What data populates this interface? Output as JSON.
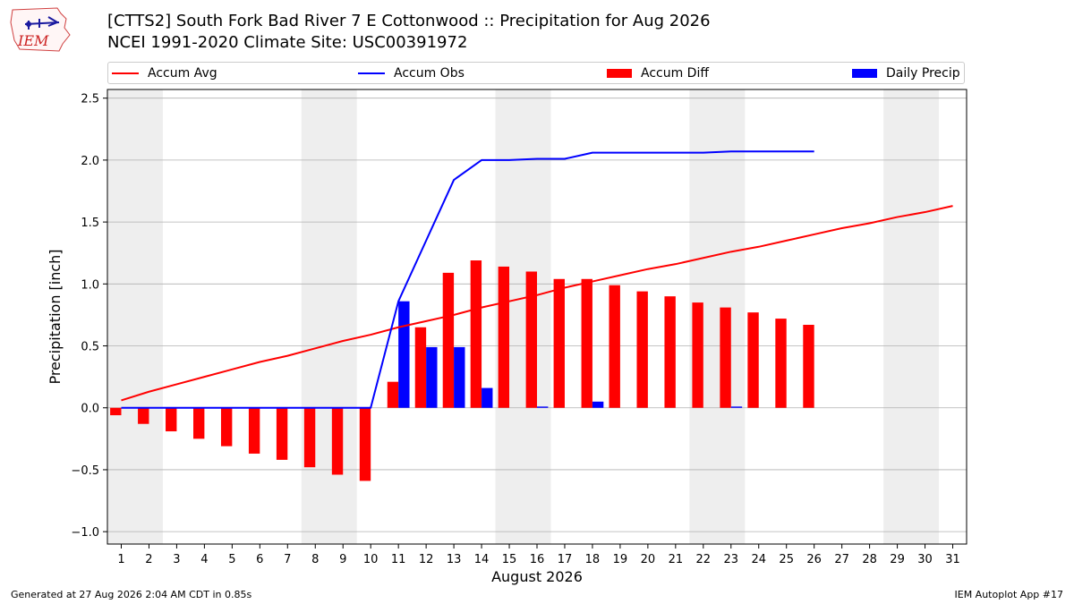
{
  "header": {
    "logo_text": "IEM",
    "title_line1": "[CTTS2] South Fork Bad River 7 E Cottonwood :: Precipitation for Aug 2026",
    "title_line2": "NCEI 1991-2020 Climate Site: USC00391972"
  },
  "footer": {
    "generated": "Generated at 27 Aug 2026 2:04 AM CDT in 0.85s",
    "app": "IEM Autoplot App #17"
  },
  "colors": {
    "accum_avg": "#ff0000",
    "accum_obs": "#0000ff",
    "accum_diff": "#ff0000",
    "daily_precip": "#0000ff",
    "weekend_shade": "#eeeeee",
    "grid": "#b0b0b0"
  },
  "chart_data": {
    "type": "bar",
    "xlabel": "August 2026",
    "ylabel": "Precipitation [inch]",
    "x_ticks": [
      "1",
      "2",
      "3",
      "4",
      "5",
      "6",
      "7",
      "8",
      "9",
      "10",
      "11",
      "12",
      "13",
      "14",
      "15",
      "16",
      "17",
      "18",
      "19",
      "20",
      "21",
      "22",
      "23",
      "24",
      "25",
      "26",
      "27",
      "28",
      "29",
      "30",
      "31"
    ],
    "ylim": [
      -1.1,
      2.57
    ],
    "y_ticks": [
      -1.0,
      -0.5,
      0.0,
      0.5,
      1.0,
      1.5,
      2.0,
      2.5
    ],
    "y_tick_labels": [
      "−1.0",
      "−0.5",
      "0.0",
      "0.5",
      "1.0",
      "1.5",
      "2.0",
      "2.5"
    ],
    "grid": "horizontal",
    "legend_position": "top",
    "shaded_days": [
      [
        1,
        2
      ],
      [
        8,
        9
      ],
      [
        15,
        16
      ],
      [
        22,
        23
      ],
      [
        29,
        30
      ]
    ],
    "series": [
      {
        "name": "Accum Avg",
        "kind": "line",
        "x": [
          1,
          2,
          3,
          4,
          5,
          6,
          7,
          8,
          9,
          10,
          11,
          12,
          13,
          14,
          15,
          16,
          17,
          18,
          19,
          20,
          21,
          22,
          23,
          24,
          25,
          26,
          27,
          28,
          29,
          30,
          31
        ],
        "values": [
          0.06,
          0.13,
          0.19,
          0.25,
          0.31,
          0.37,
          0.42,
          0.48,
          0.54,
          0.59,
          0.65,
          0.7,
          0.75,
          0.81,
          0.86,
          0.91,
          0.97,
          1.02,
          1.07,
          1.12,
          1.16,
          1.21,
          1.26,
          1.3,
          1.35,
          1.4,
          1.45,
          1.49,
          1.54,
          1.58,
          1.63
        ]
      },
      {
        "name": "Accum Obs",
        "kind": "line",
        "x": [
          1,
          2,
          3,
          4,
          5,
          6,
          7,
          8,
          9,
          10,
          11,
          12,
          13,
          14,
          15,
          16,
          17,
          18,
          19,
          20,
          21,
          22,
          23,
          24,
          25,
          26
        ],
        "values": [
          0.0,
          0.0,
          0.0,
          0.0,
          0.0,
          0.0,
          0.0,
          0.0,
          0.0,
          0.0,
          0.86,
          1.35,
          1.84,
          2.0,
          2.0,
          2.01,
          2.01,
          2.06,
          2.06,
          2.06,
          2.06,
          2.06,
          2.07,
          2.07,
          2.07,
          2.07
        ]
      },
      {
        "name": "Accum Diff",
        "kind": "bar",
        "x": [
          1,
          2,
          3,
          4,
          5,
          6,
          7,
          8,
          9,
          10,
          11,
          12,
          13,
          14,
          15,
          16,
          17,
          18,
          19,
          20,
          21,
          22,
          23,
          24,
          25,
          26
        ],
        "values": [
          -0.06,
          -0.13,
          -0.19,
          -0.25,
          -0.31,
          -0.37,
          -0.42,
          -0.48,
          -0.54,
          -0.59,
          0.21,
          0.65,
          1.09,
          1.19,
          1.14,
          1.1,
          1.04,
          1.04,
          0.99,
          0.94,
          0.9,
          0.85,
          0.81,
          0.77,
          0.72,
          0.67
        ]
      },
      {
        "name": "Daily Precip",
        "kind": "bar",
        "x": [
          1,
          2,
          3,
          4,
          5,
          6,
          7,
          8,
          9,
          10,
          11,
          12,
          13,
          14,
          15,
          16,
          17,
          18,
          19,
          20,
          21,
          22,
          23,
          24,
          25,
          26
        ],
        "values": [
          0,
          0,
          0,
          0,
          0,
          0,
          0,
          0,
          0,
          0,
          0.86,
          0.49,
          0.49,
          0.16,
          0,
          0.01,
          0,
          0.05,
          0,
          0,
          0,
          0,
          0.01,
          0,
          0,
          0
        ]
      }
    ]
  }
}
